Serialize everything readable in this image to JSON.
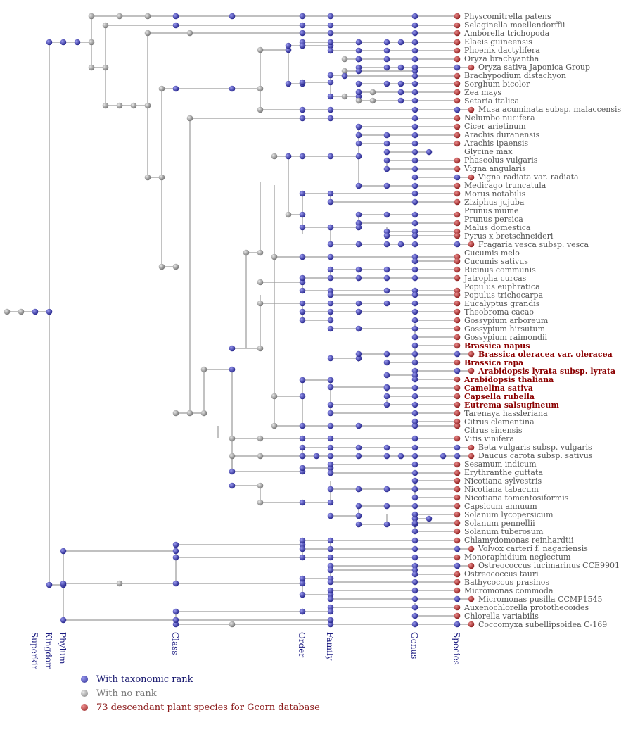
{
  "colors": {
    "rank": "#3b3ba8",
    "norank": "#9c9c9c",
    "species": "#b03030",
    "edge": "#9a9a9a"
  },
  "species": [
    {
      "name": "Physcomitrella patens"
    },
    {
      "name": "Selaginella moellendorffii"
    },
    {
      "name": "Amborella trichopoda"
    },
    {
      "name": "Elaeis guineensis"
    },
    {
      "name": "Phoenix dactylifera"
    },
    {
      "name": "Oryza brachyantha"
    },
    {
      "name": "Oryza sativa Japonica Group"
    },
    {
      "name": "Brachypodium distachyon"
    },
    {
      "name": "Sorghum bicolor"
    },
    {
      "name": "Zea mays"
    },
    {
      "name": "Setaria italica"
    },
    {
      "name": "Musa acuminata subsp. malaccensis"
    },
    {
      "name": "Nelumbo nucifera"
    },
    {
      "name": "Cicer arietinum"
    },
    {
      "name": "Arachis duranensis"
    },
    {
      "name": "Arachis ipaensis"
    },
    {
      "name": "Glycine max"
    },
    {
      "name": "Phaseolus vulgaris"
    },
    {
      "name": "Vigna angularis"
    },
    {
      "name": "Vigna radiata var. radiata"
    },
    {
      "name": "Medicago truncatula"
    },
    {
      "name": "Morus notabilis"
    },
    {
      "name": "Ziziphus jujuba"
    },
    {
      "name": "Prunus mume"
    },
    {
      "name": "Prunus persica"
    },
    {
      "name": "Malus domestica"
    },
    {
      "name": "Pyrus x bretschneideri"
    },
    {
      "name": "Fragaria vesca subsp. vesca"
    },
    {
      "name": "Cucumis melo"
    },
    {
      "name": "Cucumis sativus"
    },
    {
      "name": "Ricinus communis"
    },
    {
      "name": "Jatropha curcas"
    },
    {
      "name": "Populus euphratica"
    },
    {
      "name": "Populus trichocarpa"
    },
    {
      "name": "Eucalyptus grandis"
    },
    {
      "name": "Theobroma cacao"
    },
    {
      "name": "Gossypium arboreum"
    },
    {
      "name": "Gossypium hirsutum"
    },
    {
      "name": "Gossypium raimondii"
    },
    {
      "name": "Brassica napus",
      "highlight": true
    },
    {
      "name": "Brassica oleracea var. oleracea",
      "highlight": true
    },
    {
      "name": "Brassica rapa",
      "highlight": true
    },
    {
      "name": "Arabidopsis lyrata subsp. lyrata",
      "highlight": true
    },
    {
      "name": "Arabidopsis thaliana",
      "highlight": true
    },
    {
      "name": "Camelina sativa",
      "highlight": true
    },
    {
      "name": "Capsella rubella",
      "highlight": true
    },
    {
      "name": "Eutrema salsugineum",
      "highlight": true
    },
    {
      "name": "Tarenaya hassleriana"
    },
    {
      "name": "Citrus clementina"
    },
    {
      "name": "Citrus sinensis"
    },
    {
      "name": "Vitis vinifera"
    },
    {
      "name": "Beta vulgaris subsp. vulgaris"
    },
    {
      "name": "Daucus carota subsp. sativus"
    },
    {
      "name": "Sesamum indicum"
    },
    {
      "name": "Erythranthe guttata"
    },
    {
      "name": "Nicotiana sylvestris"
    },
    {
      "name": "Nicotiana tabacum"
    },
    {
      "name": "Nicotiana tomentosiformis"
    },
    {
      "name": "Capsicum annuum"
    },
    {
      "name": "Solanum lycopersicum"
    },
    {
      "name": "Solanum pennellii"
    },
    {
      "name": "Solanum tuberosum"
    },
    {
      "name": "Chlamydomonas reinhardtii"
    },
    {
      "name": "Volvox carteri f. nagariensis"
    },
    {
      "name": "Monoraphidium neglectum"
    },
    {
      "name": "Ostreococcus lucimarinus CCE9901"
    },
    {
      "name": "Ostreococcus tauri"
    },
    {
      "name": "Bathycoccus prasinos"
    },
    {
      "name": "Micromonas commoda"
    },
    {
      "name": "Micromonas pusilla CCMP1545"
    },
    {
      "name": "Auxenochlorella protothecoides"
    },
    {
      "name": "Chlorella variabilis"
    },
    {
      "name": "Coccomyxa subellipsoidea C-169"
    }
  ],
  "rank_labels": {
    "superkingdom": "Superkingdom",
    "kingdom": "Kingdom",
    "phylum": "Phylum",
    "class": "Class",
    "order": "Order",
    "family": "Family",
    "genus": "Genus",
    "species": "Species"
  },
  "legend": {
    "rank": "With taxonomic rank",
    "norank": "With no rank",
    "species": "73 descendant plant species for Gcorn database"
  }
}
